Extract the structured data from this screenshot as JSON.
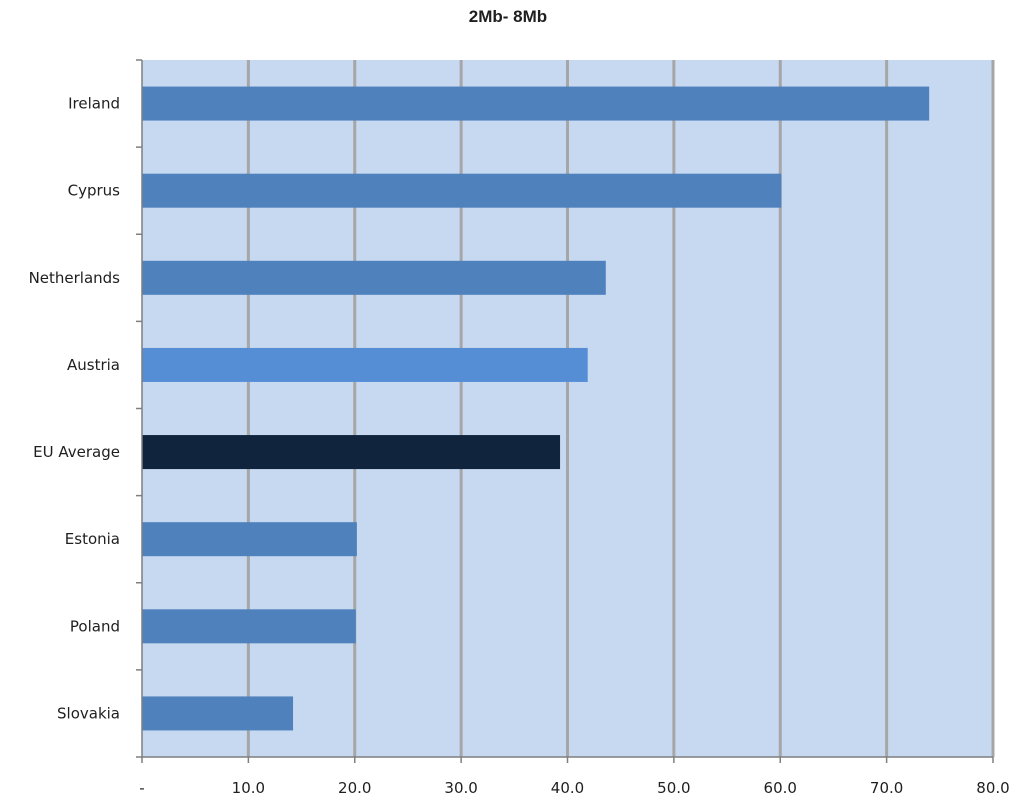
{
  "chart_data": {
    "type": "bar",
    "orientation": "horizontal",
    "title": "2Mb- 8Mb",
    "categories": [
      "Ireland",
      "Cyprus",
      "Netherlands",
      "Austria",
      "EU Average",
      "Estonia",
      "Poland",
      "Slovakia"
    ],
    "values": [
      74.0,
      60.1,
      43.6,
      41.9,
      39.3,
      20.2,
      20.1,
      14.2
    ],
    "xlim": [
      0,
      80
    ],
    "x_ticks": [
      0,
      10,
      20,
      30,
      40,
      50,
      60,
      70,
      80
    ],
    "x_tick_labels": [
      "-",
      "10.0",
      "20.0",
      "30.0",
      "40.0",
      "50.0",
      "60.0",
      "70.0",
      "80.0"
    ],
    "xlabel": "",
    "ylabel": "",
    "grid": "vertical",
    "legend": "none",
    "colors": {
      "plot_background": "#c6d9f1",
      "bar": "#4f81bd",
      "bar_austria": "#558ed5",
      "bar_highlight": "#10243e",
      "gridline": "#a6a6a6",
      "axis": "#7f7f7f"
    }
  }
}
